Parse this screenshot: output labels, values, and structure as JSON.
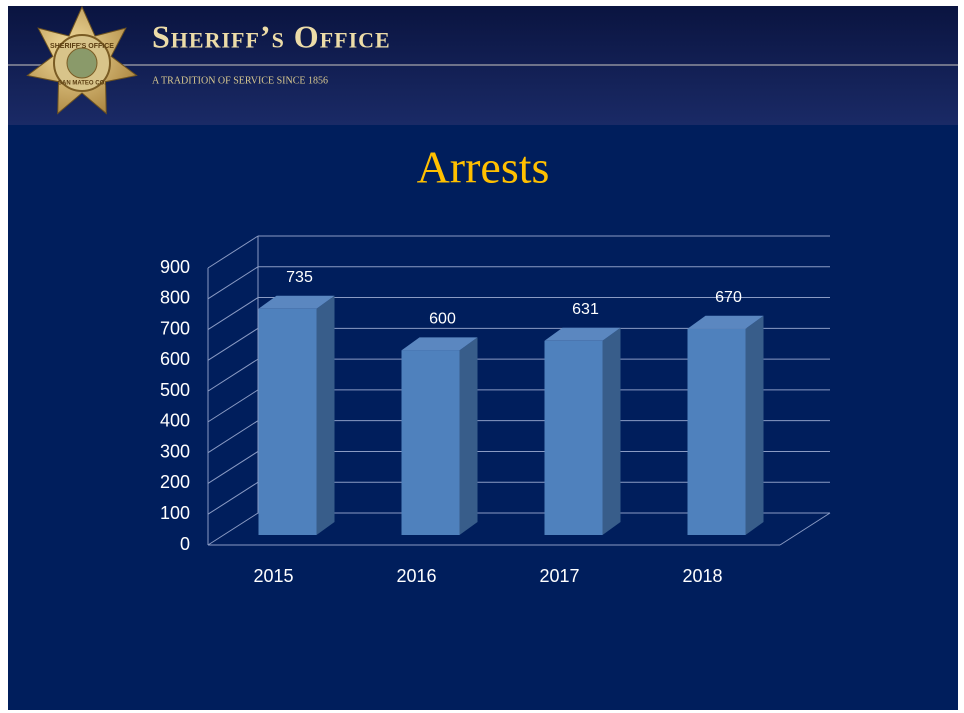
{
  "header": {
    "title": "Sheriff’s Office",
    "subtitle": "A TRADITION OF SERVICE SINCE 1856",
    "badge_top": "SHERIFF'S OFFICE",
    "badge_bottom": "SAN MATEO CO."
  },
  "chart_data": {
    "type": "bar",
    "title": "Arrests",
    "categories": [
      "2015",
      "2016",
      "2017",
      "2018"
    ],
    "values": [
      735,
      600,
      631,
      670
    ],
    "color": "#4f81bd",
    "ylim": [
      0,
      900
    ],
    "yticks": [
      0,
      100,
      200,
      300,
      400,
      500,
      600,
      700,
      800,
      900
    ],
    "grid": true
  }
}
